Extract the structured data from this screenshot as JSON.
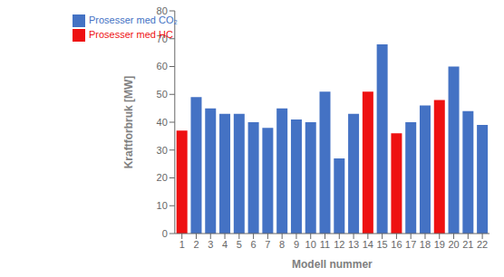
{
  "chart_data": {
    "type": "bar",
    "xlabel": "Modell nummer",
    "ylabel": "Kraftforbruk [MW]",
    "categories": [
      "1",
      "2",
      "3",
      "4",
      "5",
      "6",
      "7",
      "8",
      "9",
      "10",
      "11",
      "12",
      "13",
      "14",
      "15",
      "16",
      "17",
      "18",
      "19",
      "20",
      "21",
      "22"
    ],
    "series": [
      {
        "name": "Prosesser med HC",
        "color": "#ee1111",
        "values": [
          37,
          null,
          null,
          null,
          null,
          null,
          null,
          null,
          null,
          null,
          null,
          null,
          null,
          51,
          null,
          36,
          null,
          null,
          48,
          null,
          null,
          null
        ]
      },
      {
        "name": "Prosesser med CO₂",
        "color": "#4472c4",
        "values": [
          null,
          49,
          45,
          43,
          43,
          40,
          38,
          45,
          41,
          40,
          51,
          27,
          43,
          null,
          68,
          null,
          40,
          46,
          null,
          60,
          44,
          39
        ]
      }
    ],
    "stacked": true,
    "ylim": [
      0,
      80
    ],
    "yticks": [
      0,
      10,
      20,
      30,
      40,
      50,
      60,
      70,
      80
    ],
    "grid": false,
    "legend": "upper left"
  }
}
